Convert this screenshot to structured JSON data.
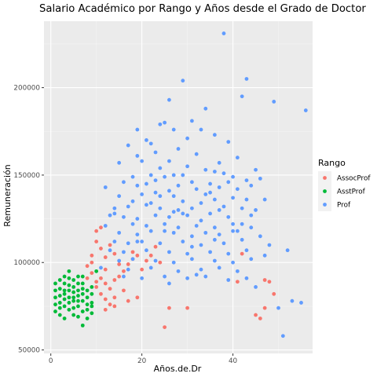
{
  "chart_data": {
    "type": "scatter",
    "title": "Salario Académico por Rango y Años desde el Grado de Doctor",
    "xlabel": "Años.de.Dr",
    "ylabel": "Remuneración",
    "xlim": [
      -1.5,
      57.5
    ],
    "ylim": [
      48000,
      238000
    ],
    "x_ticks": [
      0,
      20,
      40
    ],
    "y_ticks": [
      50000,
      100000,
      150000,
      200000
    ],
    "x_tick_labels": [
      "0",
      "20",
      "40"
    ],
    "y_tick_labels": [
      "50000",
      "100000",
      "150000",
      "200000"
    ],
    "grid": true,
    "legend": {
      "title": "Rango",
      "position": "right"
    },
    "series": [
      {
        "name": "AssocProf",
        "color": "#F8766D",
        "points": [
          [
            8,
            98000
          ],
          [
            9,
            104000
          ],
          [
            9,
            100000
          ],
          [
            10,
            112000
          ],
          [
            10,
            118000
          ],
          [
            11,
            108000
          ],
          [
            11,
            120000
          ],
          [
            12,
            103000
          ],
          [
            12,
            96000
          ],
          [
            13,
            110000
          ],
          [
            14,
            105000
          ],
          [
            15,
            99000
          ],
          [
            10,
            86000
          ],
          [
            11,
            82000
          ],
          [
            12,
            79000
          ],
          [
            13,
            76000
          ],
          [
            14,
            80000
          ],
          [
            16,
            84000
          ],
          [
            17,
            78000
          ],
          [
            19,
            80000
          ],
          [
            20,
            96000
          ],
          [
            21,
            101000
          ],
          [
            23,
            109000
          ],
          [
            24,
            100000
          ],
          [
            8,
            91000
          ],
          [
            9,
            94000
          ],
          [
            10,
            89000
          ],
          [
            11,
            91000
          ],
          [
            12,
            88000
          ],
          [
            13,
            85000
          ],
          [
            14,
            90000
          ],
          [
            15,
            92000
          ],
          [
            16,
            95000
          ],
          [
            17,
            99000
          ],
          [
            18,
            102000
          ],
          [
            19,
            104000
          ],
          [
            12,
            73000
          ],
          [
            14,
            75000
          ],
          [
            26,
            74000
          ],
          [
            25,
            63000
          ],
          [
            30,
            74000
          ],
          [
            41,
            89000
          ],
          [
            42,
            105000
          ],
          [
            45,
            70000
          ],
          [
            46,
            68000
          ],
          [
            47,
            90000
          ],
          [
            48,
            89000
          ],
          [
            49,
            82000
          ],
          [
            47,
            74000
          ],
          [
            18,
            106000
          ],
          [
            22,
            104000
          ]
        ]
      },
      {
        "name": "AsstProf",
        "color": "#00BA38",
        "points": [
          [
            1,
            80000
          ],
          [
            1,
            88000
          ],
          [
            1,
            72000
          ],
          [
            2,
            85000
          ],
          [
            2,
            90000
          ],
          [
            2,
            77000
          ],
          [
            2,
            70000
          ],
          [
            3,
            92000
          ],
          [
            3,
            84000
          ],
          [
            3,
            75000
          ],
          [
            3,
            68000
          ],
          [
            4,
            87000
          ],
          [
            4,
            80000
          ],
          [
            4,
            73000
          ],
          [
            4,
            95000
          ],
          [
            5,
            83000
          ],
          [
            5,
            78000
          ],
          [
            5,
            70000
          ],
          [
            5,
            90000
          ],
          [
            6,
            88000
          ],
          [
            6,
            81000
          ],
          [
            6,
            75000
          ],
          [
            6,
            69000
          ],
          [
            7,
            92000
          ],
          [
            7,
            85000
          ],
          [
            7,
            78000
          ],
          [
            7,
            64000
          ],
          [
            8,
            80000
          ],
          [
            8,
            73000
          ],
          [
            8,
            68000
          ],
          [
            9,
            86000
          ],
          [
            9,
            77000
          ],
          [
            9,
            71000
          ],
          [
            1,
            84000
          ],
          [
            2,
            81000
          ],
          [
            3,
            79000
          ],
          [
            3,
            88000
          ],
          [
            4,
            77000
          ],
          [
            4,
            91000
          ],
          [
            5,
            86000
          ],
          [
            5,
            74000
          ],
          [
            6,
            92000
          ],
          [
            6,
            84000
          ],
          [
            7,
            72000
          ],
          [
            7,
            88000
          ],
          [
            8,
            84000
          ],
          [
            9,
            75000
          ],
          [
            10,
            95000
          ],
          [
            1,
            76000
          ],
          [
            2,
            74000
          ],
          [
            3,
            82000
          ],
          [
            4,
            84000
          ],
          [
            5,
            80000
          ],
          [
            6,
            78000
          ],
          [
            7,
            82000
          ],
          [
            8,
            76000
          ],
          [
            9,
            82000
          ]
        ]
      },
      {
        "name": "Prof",
        "color": "#619CFF",
        "points": [
          [
            38,
            231000
          ],
          [
            43,
            205000
          ],
          [
            42,
            195000
          ],
          [
            49,
            192000
          ],
          [
            56,
            187000
          ],
          [
            29,
            204000
          ],
          [
            26,
            193000
          ],
          [
            34,
            188000
          ],
          [
            31,
            181000
          ],
          [
            25,
            180000
          ],
          [
            24,
            179000
          ],
          [
            19,
            176000
          ],
          [
            27,
            176000
          ],
          [
            33,
            176000
          ],
          [
            36,
            173000
          ],
          [
            30,
            171000
          ],
          [
            21,
            170000
          ],
          [
            17,
            167000
          ],
          [
            22,
            168000
          ],
          [
            39,
            169000
          ],
          [
            23,
            163000
          ],
          [
            41,
            160000
          ],
          [
            37,
            157000
          ],
          [
            19,
            161000
          ],
          [
            28,
            165000
          ],
          [
            32,
            162000
          ],
          [
            26,
            158000
          ],
          [
            20,
            158000
          ],
          [
            15,
            157000
          ],
          [
            24,
            154000
          ],
          [
            34,
            153000
          ],
          [
            45,
            153000
          ],
          [
            30,
            155000
          ],
          [
            29,
            150000
          ],
          [
            36,
            152000
          ],
          [
            27,
            150000
          ],
          [
            22,
            150000
          ],
          [
            18,
            149000
          ],
          [
            25,
            149000
          ],
          [
            38,
            151000
          ],
          [
            43,
            147000
          ],
          [
            40,
            149000
          ],
          [
            46,
            148000
          ],
          [
            16,
            146000
          ],
          [
            21,
            145000
          ],
          [
            31,
            146000
          ],
          [
            35,
            145000
          ],
          [
            39,
            146000
          ],
          [
            12,
            143000
          ],
          [
            19,
            144000
          ],
          [
            23,
            140000
          ],
          [
            26,
            141000
          ],
          [
            32,
            142000
          ],
          [
            37,
            143000
          ],
          [
            44,
            144000
          ],
          [
            41,
            142000
          ],
          [
            47,
            136000
          ],
          [
            15,
            138000
          ],
          [
            20,
            139000
          ],
          [
            27,
            138000
          ],
          [
            34,
            139000
          ],
          [
            18,
            135000
          ],
          [
            22,
            134000
          ],
          [
            29,
            135000
          ],
          [
            33,
            134000
          ],
          [
            36,
            136000
          ],
          [
            40,
            137000
          ],
          [
            43,
            136000
          ],
          [
            14,
            131000
          ],
          [
            17,
            132000
          ],
          [
            24,
            131000
          ],
          [
            28,
            130000
          ],
          [
            31,
            131000
          ],
          [
            38,
            132000
          ],
          [
            42,
            131000
          ],
          [
            45,
            130000
          ],
          [
            13,
            127000
          ],
          [
            16,
            126000
          ],
          [
            19,
            125000
          ],
          [
            23,
            127000
          ],
          [
            26,
            126000
          ],
          [
            30,
            127000
          ],
          [
            35,
            128000
          ],
          [
            39,
            126000
          ],
          [
            44,
            127000
          ],
          [
            12,
            121000
          ],
          [
            18,
            122000
          ],
          [
            21,
            121000
          ],
          [
            25,
            122000
          ],
          [
            28,
            120000
          ],
          [
            32,
            121000
          ],
          [
            36,
            120000
          ],
          [
            40,
            122000
          ],
          [
            15,
            117000
          ],
          [
            19,
            116000
          ],
          [
            22,
            118000
          ],
          [
            27,
            117000
          ],
          [
            31,
            115000
          ],
          [
            34,
            117000
          ],
          [
            37,
            116000
          ],
          [
            41,
            118000
          ],
          [
            46,
            115000
          ],
          [
            14,
            112000
          ],
          [
            17,
            111000
          ],
          [
            20,
            112000
          ],
          [
            24,
            111000
          ],
          [
            29,
            112000
          ],
          [
            33,
            110000
          ],
          [
            38,
            111000
          ],
          [
            42,
            113000
          ],
          [
            48,
            110000
          ],
          [
            13,
            107000
          ],
          [
            16,
            106000
          ],
          [
            21,
            107000
          ],
          [
            26,
            106000
          ],
          [
            30,
            105000
          ],
          [
            35,
            106000
          ],
          [
            39,
            105000
          ],
          [
            43,
            107000
          ],
          [
            15,
            101000
          ],
          [
            18,
            102000
          ],
          [
            23,
            101000
          ],
          [
            27,
            100000
          ],
          [
            31,
            102000
          ],
          [
            36,
            101000
          ],
          [
            40,
            100000
          ],
          [
            44,
            102000
          ],
          [
            11,
            97000
          ],
          [
            17,
            96000
          ],
          [
            22,
            97000
          ],
          [
            28,
            95000
          ],
          [
            33,
            96000
          ],
          [
            37,
            97000
          ],
          [
            41,
            95000
          ],
          [
            16,
            92000
          ],
          [
            20,
            91000
          ],
          [
            25,
            92000
          ],
          [
            30,
            91000
          ],
          [
            34,
            92000
          ],
          [
            39,
            90000
          ],
          [
            43,
            91000
          ],
          [
            26,
            88000
          ],
          [
            45,
            86000
          ],
          [
            52,
            107000
          ],
          [
            55,
            77000
          ],
          [
            53,
            78000
          ],
          [
            50,
            74000
          ],
          [
            51,
            58000
          ],
          [
            32,
            93000
          ],
          [
            47,
            104000
          ],
          [
            19,
            112000
          ],
          [
            14,
            128000
          ],
          [
            25,
            118000
          ],
          [
            29,
            128000
          ],
          [
            33,
            124000
          ],
          [
            37,
            130000
          ],
          [
            42,
            122000
          ],
          [
            21,
            133000
          ],
          [
            24,
            138000
          ],
          [
            28,
            144000
          ],
          [
            35,
            140000
          ],
          [
            40,
            118000
          ],
          [
            23,
            147000
          ],
          [
            27,
            129000
          ],
          [
            31,
            109000
          ],
          [
            36,
            113000
          ],
          [
            44,
            120000
          ]
        ]
      }
    ]
  }
}
